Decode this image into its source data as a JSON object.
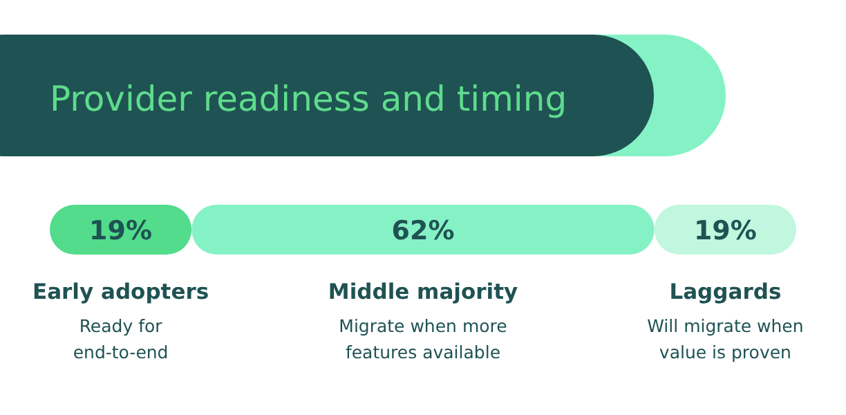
{
  "chart_data": {
    "type": "bar",
    "title": "Provider readiness and timing",
    "orientation": "horizontal",
    "stacked": true,
    "categories": [
      null
    ],
    "xlim": [
      0,
      100
    ],
    "series": [
      {
        "name": "Early adopters",
        "color": "#52dc8c",
        "values": [
          19
        ],
        "value_labels": [
          "19%"
        ]
      },
      {
        "name": "Middle majority",
        "color": "#85f2c5",
        "values": [
          62
        ],
        "value_labels": [
          "62%"
        ]
      },
      {
        "name": "Laggards",
        "color": "#c0f7de",
        "values": [
          19
        ],
        "value_labels": [
          "19%"
        ]
      }
    ],
    "annotations": [
      "Ready for\nend-to-end",
      "Migrate when more\nfeatures available",
      "Will migrate when\nvalue is proven"
    ]
  }
}
